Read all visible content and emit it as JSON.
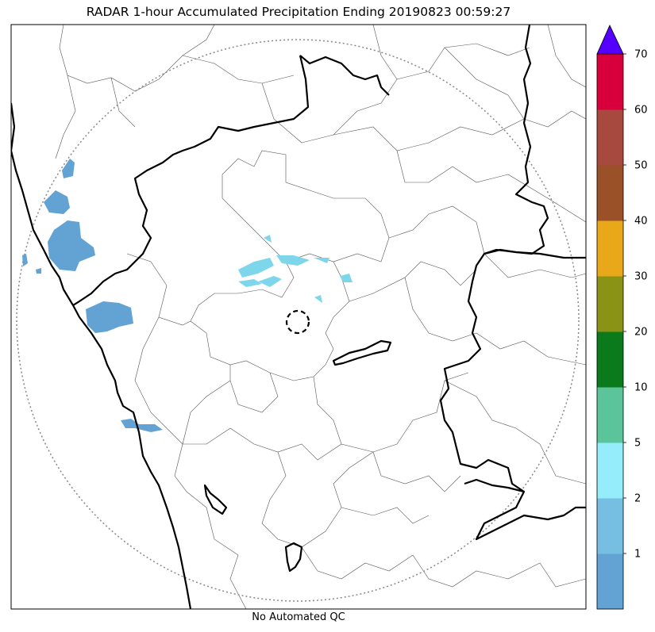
{
  "title": "RADAR 1-hour Accumulated Precipitation Ending 20190823 00:59:27",
  "footer": "No Automated QC",
  "colorbar": {
    "bands": [
      {
        "color": "#62a3d4"
      },
      {
        "color": "#77bee3"
      },
      {
        "color": "#95ecfb"
      },
      {
        "color": "#5cc49a"
      },
      {
        "color": "#0a7a1b"
      },
      {
        "color": "#8a9315"
      },
      {
        "color": "#e8a81a"
      },
      {
        "color": "#9a5128"
      },
      {
        "color": "#a8493f"
      },
      {
        "color": "#d8003c"
      }
    ],
    "tick_labels": [
      "1",
      "2",
      "5",
      "10",
      "20",
      "30",
      "40",
      "50",
      "60",
      "70"
    ],
    "extend_color": "#5500ff"
  },
  "map_colors": {
    "rain_light": "#62a3d4",
    "rain_cyan": "#7ed6ea",
    "range_ring": "#888888",
    "state_border": "#000000",
    "district_border": "#555555"
  }
}
